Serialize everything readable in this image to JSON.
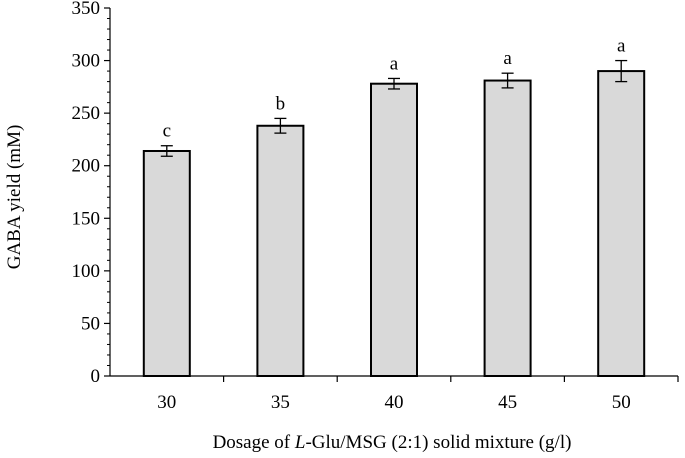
{
  "chart_data": {
    "type": "bar",
    "categories": [
      "30",
      "35",
      "40",
      "45",
      "50"
    ],
    "values": [
      214,
      238,
      278,
      281,
      290
    ],
    "errors": [
      5,
      7,
      5,
      7,
      10
    ],
    "significance": [
      "c",
      "b",
      "a",
      "a",
      "a"
    ],
    "ylabel": "GABA yield (mM)",
    "xlabel_parts": [
      "Dosage of ",
      "L",
      "-Glu/MSG (2:1) solid mixture (g/l)"
    ],
    "ylim": [
      0,
      350
    ],
    "yticks": [
      0,
      50,
      100,
      150,
      200,
      250,
      300,
      350
    ],
    "grid": false,
    "bar_fill": "#d9d9d9",
    "bar_stroke": "#000000"
  }
}
